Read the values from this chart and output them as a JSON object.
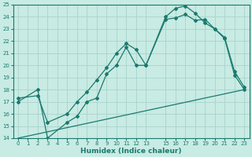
{
  "xlabel": "Humidex (Indice chaleur)",
  "bg_color": "#c8ebe4",
  "grid_color": "#a8d4cc",
  "line_color": "#1a7a6e",
  "xlim": [
    -0.5,
    23.5
  ],
  "ylim": [
    14,
    25
  ],
  "xtick_vals": [
    0,
    1,
    2,
    3,
    4,
    5,
    6,
    7,
    8,
    9,
    10,
    11,
    12,
    13,
    15,
    16,
    17,
    18,
    19,
    20,
    21,
    22,
    23
  ],
  "ytick_vals": [
    14,
    15,
    16,
    17,
    18,
    19,
    20,
    21,
    22,
    23,
    24,
    25
  ],
  "line1_x": [
    0,
    23
  ],
  "line1_y": [
    14.0,
    18.0
  ],
  "line2_x": [
    0,
    2,
    3,
    5,
    6,
    7,
    8,
    9,
    10,
    11,
    12,
    13,
    15,
    16,
    17,
    18,
    19,
    20,
    21,
    22,
    23
  ],
  "line2_y": [
    17.0,
    18.0,
    14.0,
    15.3,
    15.8,
    17.0,
    17.3,
    19.3,
    20.0,
    21.5,
    20.0,
    20.0,
    23.8,
    23.9,
    24.2,
    23.7,
    23.8,
    23.0,
    22.2,
    19.2,
    18.0
  ],
  "line3_x": [
    0,
    2,
    3,
    5,
    6,
    7,
    8,
    9,
    10,
    11,
    12,
    13,
    15,
    16,
    17,
    18,
    19,
    20,
    21,
    22,
    23
  ],
  "line3_y": [
    17.3,
    17.5,
    15.3,
    16.0,
    17.0,
    17.8,
    18.8,
    19.8,
    21.0,
    21.8,
    21.3,
    20.0,
    24.0,
    24.7,
    24.9,
    24.3,
    23.5,
    23.0,
    22.3,
    19.5,
    18.2
  ]
}
